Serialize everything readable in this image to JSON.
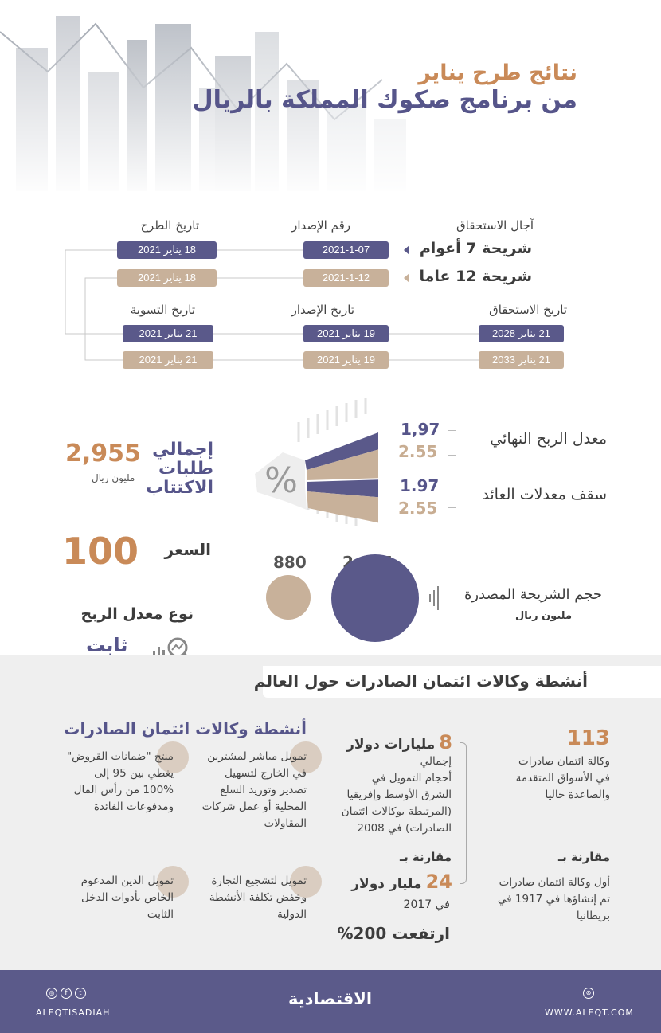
{
  "title": {
    "line1": "نتائج طرح يناير",
    "line2": "من برنامج صكوك المملكة بالريال"
  },
  "schedule": {
    "headers_top": {
      "maturity_terms": "آجال الاستحقاق",
      "issue_number": "رقم الإصدار",
      "offering_date": "تاريخ الطرح"
    },
    "headers_bottom": {
      "maturity_date": "تاريخ الاستحقاق",
      "issue_date": "تاريخ الإصدار",
      "settlement_date": "تاريخ التسوية"
    },
    "tranches": [
      {
        "name": "شريحة 7 أعوام",
        "issue_number": "2021-1-07",
        "offering_date": "18 يناير 2021",
        "maturity_date": "21 يناير 2028",
        "issue_date": "19 يناير 2021",
        "settlement_date": "21 يناير 2021"
      },
      {
        "name": "شريحة 12 عاما",
        "issue_number": "2021-1-12",
        "offering_date": "18 يناير 2021",
        "maturity_date": "21 يناير 2033",
        "issue_date": "19 يناير 2021",
        "settlement_date": "21 يناير 2021"
      }
    ]
  },
  "rates": {
    "final_profit_label": "معدل الربح النهائي",
    "final_7": "1,97",
    "final_12": "2.55",
    "cap_label": "سقف معدلات العائد",
    "cap_7": "1.97",
    "cap_12": "2.55",
    "percent_symbol": "%"
  },
  "subscriptions": {
    "label": "إجمالي طلبات الاكتتاب",
    "value": "2,955",
    "unit": "مليون ريال"
  },
  "price": {
    "label": "السعر",
    "value": "100"
  },
  "profit_type": {
    "label": "نوع معدل الربح",
    "value": "ثابت"
  },
  "tranche_size": {
    "label": "حجم الشريحة المصدرة",
    "unit": "مليون ريال",
    "value_7": "2,075",
    "value_12": "880",
    "values": [
      2075,
      880
    ]
  },
  "eca": {
    "section_title": "أنشطة وكالات ائتمان الصادرات حول العالم",
    "count": "113",
    "count_text": [
      "وكالة ائتمان صادرات",
      "في الأسواق المتقدمة",
      "والصاعدة حاليا"
    ],
    "compare1": "مقارنة بـ",
    "first_text": [
      "أول وكالة ائتمان صادرات",
      "تم إنشاؤها في 1917 في",
      "بريطانيا"
    ],
    "amount1_num": "8",
    "amount1_unit": "مليارات دولار",
    "amount1_text": [
      "إجمالي",
      "أحجام التمويل في",
      "الشرق الأوسط وإفريقيا",
      "(المرتبطة بوكالات ائتمان",
      "الصادرات) في 2008"
    ],
    "compare2": "مقارنة بـ",
    "amount2_num": "24",
    "amount2_unit": "مليار دولار",
    "amount2_year": "في 2017",
    "rise": "ارتفعت 200%",
    "activities_title": "أنشطة وكالات ائتمان الصادرات",
    "activities": [
      [
        "تمويل مباشر لمشترين",
        "في الخارج لتسهيل",
        "تصدير وتوريد السلع",
        "المحلية أو عمل شركات",
        "المقاولات"
      ],
      [
        "منتج \"ضمانات القروض\"",
        "يغطي بين 95 إلى",
        "100% من رأس المال",
        "ومدفوعات الفائدة"
      ],
      [
        "تمويل لتشجيع التجارة",
        "وخفض تكلفة الأنشطة",
        "الدولية"
      ],
      [
        "تمويل الدين المدعوم",
        "الخاص بأدوات الدخل",
        "الثابت"
      ]
    ]
  },
  "footer": {
    "logo": "الاقتصادية",
    "handle": "ALEQTISADIAH",
    "website": "WWW.ALEQT.COM"
  },
  "colors": {
    "purple": "#5a598a",
    "tan": "#c8b19a",
    "orange": "#c98a58"
  }
}
